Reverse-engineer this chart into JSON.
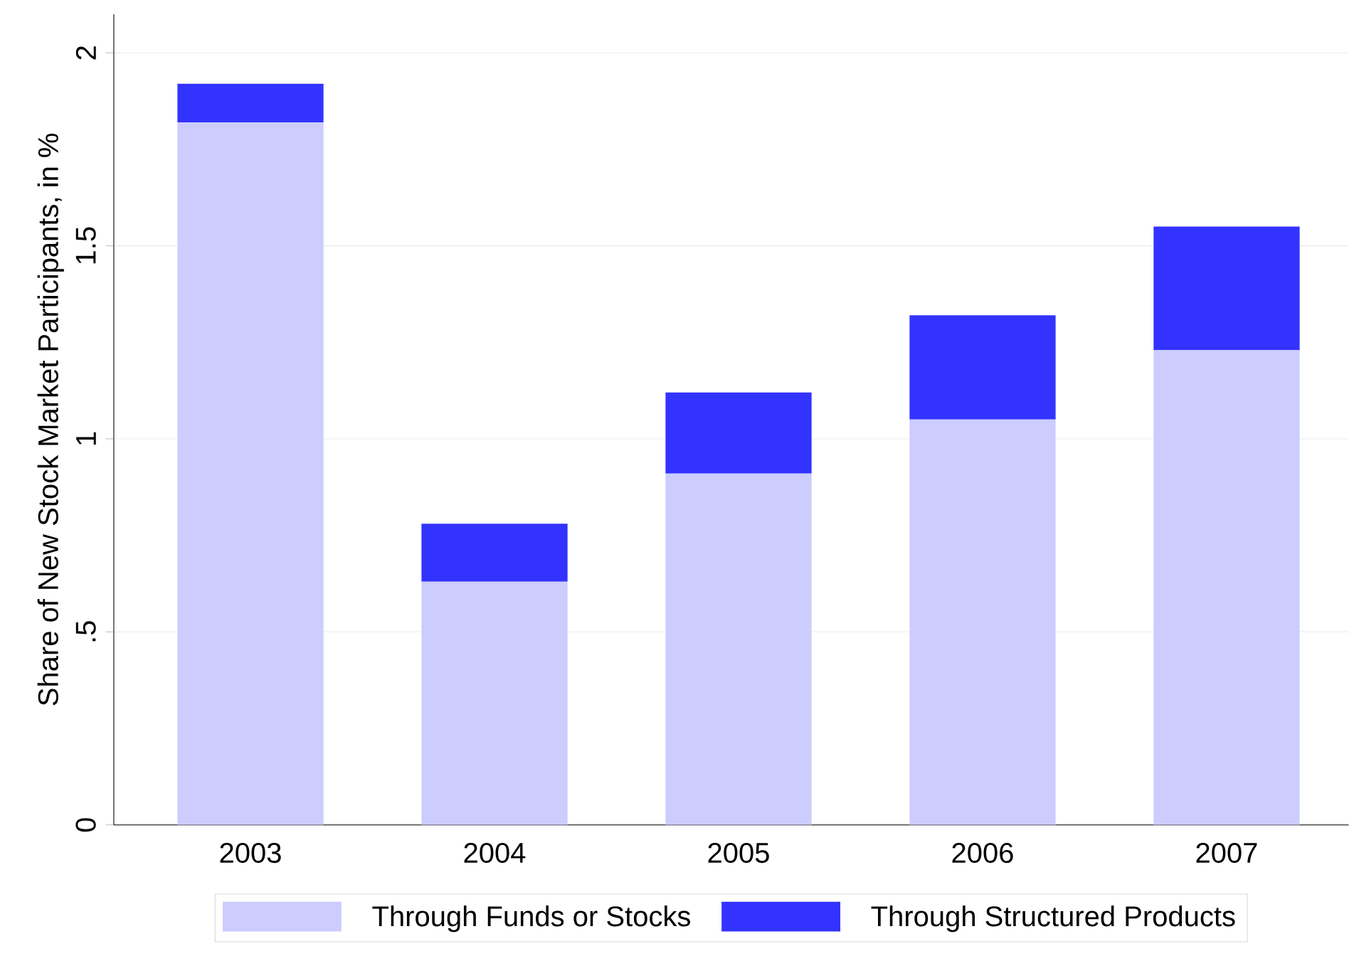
{
  "chart_data": {
    "type": "bar",
    "stacked": true,
    "ylabel": "Share of New Stock Market Participants, in %",
    "categories": [
      "2003",
      "2004",
      "2005",
      "2006",
      "2007"
    ],
    "series": [
      {
        "name": "Through Funds or Stocks",
        "color": "#ccccff",
        "values": [
          1.82,
          0.63,
          0.91,
          1.05,
          1.23
        ]
      },
      {
        "name": "Through Structured Products",
        "color": "#3333ff",
        "values": [
          0.1,
          0.15,
          0.21,
          0.27,
          0.32
        ]
      }
    ],
    "ylim": [
      0,
      2.1
    ],
    "yticks": [
      0,
      {
        "value": 0.5,
        "label": ".5"
      },
      1,
      {
        "value": 1.5,
        "label": "1.5"
      },
      2
    ],
    "grid": "y",
    "legend": "bottom"
  }
}
